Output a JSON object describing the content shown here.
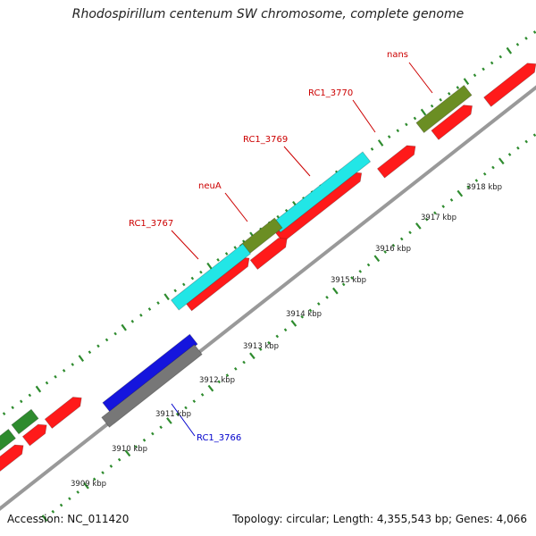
{
  "title": "Rhodospirillum centenum SW chromosome, complete genome",
  "footer": {
    "accession": "Accession: NC_011420",
    "summary": "Topology: circular; Length: 4,355,543 bp; Genes: 4,066"
  },
  "colors": {
    "background": "#ffffff",
    "backbone": "#999999",
    "tick_green": "#2e8b2e",
    "label_red": "#cc0000",
    "label_blue": "#0000cc",
    "cds_red": "#ff1a1a",
    "gene_cyan": "#22e6e6",
    "gene_olive": "#6b8e23",
    "gene_green": "#2e8b2e",
    "gene_blue": "#1515dd",
    "gene_gray": "#777777"
  },
  "scale_labels": [
    "3909 kbp",
    "3910 kbp",
    "3911 kbp",
    "3912 kbp",
    "3913 kbp",
    "3914 kbp",
    "3915 kbp",
    "3916 kbp",
    "3917 kbp",
    "3918 kbp"
  ],
  "gene_labels": [
    {
      "text": "nans",
      "color": "red"
    },
    {
      "text": "RC1_3770",
      "color": "red"
    },
    {
      "text": "RC1_3769",
      "color": "red"
    },
    {
      "text": "neuA",
      "color": "red"
    },
    {
      "text": "RC1_3767",
      "color": "red"
    },
    {
      "text": "RC1_3766",
      "color": "blue"
    }
  ],
  "features": [
    {
      "name": "cds-upper-right-1",
      "color": "red"
    },
    {
      "name": "cds-upper-right-2",
      "color": "red"
    },
    {
      "name": "cds-upper-mid-1",
      "color": "red"
    },
    {
      "name": "cds-upper-mid-2",
      "color": "red"
    },
    {
      "name": "cds-upper-mid-3",
      "color": "red"
    },
    {
      "name": "cds-upper-mid-4",
      "color": "red"
    },
    {
      "name": "cds-lower-left-1",
      "color": "red"
    },
    {
      "name": "cds-lower-left-2",
      "color": "red"
    },
    {
      "name": "cds-lower-left-3",
      "color": "red"
    },
    {
      "name": "gene-nans",
      "color": "olive"
    },
    {
      "name": "gene-rc1-3769",
      "color": "cyan"
    },
    {
      "name": "gene-neua",
      "color": "olive"
    },
    {
      "name": "gene-rc1-3767",
      "color": "cyan"
    },
    {
      "name": "gene-rc1-3766",
      "color": "blue"
    },
    {
      "name": "gene-rc1-3766-shadow",
      "color": "gray"
    },
    {
      "name": "gene-left-1",
      "color": "green"
    },
    {
      "name": "gene-left-2",
      "color": "green"
    }
  ]
}
